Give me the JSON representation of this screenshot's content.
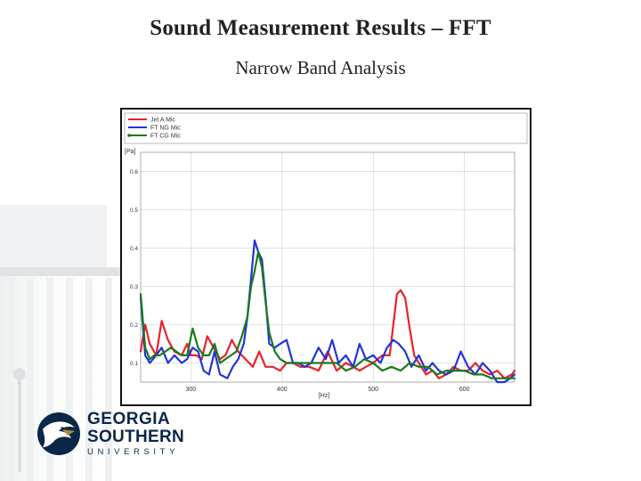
{
  "slide": {
    "title": "Sound  Measurement Results – FFT",
    "subtitle": "Narrow Band Analysis"
  },
  "logo": {
    "line1": "GEORGIA",
    "line2": "SOUTHERN",
    "line3": "UNIVERSITY",
    "icon": "eagle-head-icon"
  },
  "colors": {
    "jet": "#e8222a",
    "ng": "#2233dd",
    "cg": "#1a7a1a",
    "navy": "#0b2748",
    "gold": "#b0893e"
  },
  "chart_data": {
    "type": "line",
    "title": "",
    "xlabel": "[Hz]",
    "ylabel": "[Pa]",
    "xlim": [
      245,
      655
    ],
    "ylim": [
      0.05,
      0.65
    ],
    "xticks": [
      300,
      400,
      500,
      600
    ],
    "yticks": [
      0.1,
      0.2,
      0.3,
      0.4,
      0.5,
      0.6
    ],
    "grid": true,
    "legend": "top",
    "series": [
      {
        "name": "Jet A Mic",
        "color": "#e8222a",
        "x": [
          245,
          250,
          255,
          262,
          268,
          275,
          282,
          290,
          296,
          300,
          306,
          312,
          318,
          325,
          332,
          338,
          345,
          352,
          360,
          368,
          375,
          382,
          390,
          398,
          405,
          412,
          420,
          430,
          440,
          450,
          460,
          470,
          478,
          485,
          492,
          500,
          510,
          518,
          522,
          526,
          530,
          535,
          540,
          545,
          550,
          558,
          565,
          572,
          580,
          588,
          596,
          604,
          612,
          620,
          628,
          636,
          644,
          652,
          655
        ],
        "y": [
          0.13,
          0.2,
          0.15,
          0.12,
          0.21,
          0.16,
          0.13,
          0.12,
          0.15,
          0.12,
          0.12,
          0.11,
          0.17,
          0.14,
          0.11,
          0.12,
          0.16,
          0.13,
          0.11,
          0.09,
          0.13,
          0.09,
          0.09,
          0.08,
          0.1,
          0.1,
          0.09,
          0.09,
          0.08,
          0.13,
          0.08,
          0.1,
          0.09,
          0.08,
          0.09,
          0.1,
          0.12,
          0.12,
          0.2,
          0.28,
          0.29,
          0.27,
          0.19,
          0.12,
          0.1,
          0.07,
          0.08,
          0.06,
          0.07,
          0.09,
          0.08,
          0.08,
          0.1,
          0.08,
          0.07,
          0.08,
          0.06,
          0.07,
          0.08
        ]
      },
      {
        "name": "FT NG Mic",
        "color": "#2233dd",
        "x": [
          245,
          250,
          255,
          262,
          268,
          275,
          282,
          290,
          296,
          302,
          308,
          314,
          320,
          326,
          332,
          340,
          346,
          352,
          358,
          362,
          366,
          370,
          374,
          378,
          382,
          386,
          392,
          398,
          405,
          412,
          418,
          425,
          432,
          440,
          448,
          455,
          462,
          470,
          478,
          485,
          492,
          500,
          508,
          515,
          522,
          528,
          535,
          542,
          550,
          558,
          565,
          572,
          580,
          588,
          596,
          604,
          612,
          620,
          628,
          636,
          644,
          650,
          655
        ],
        "y": [
          0.27,
          0.12,
          0.1,
          0.12,
          0.14,
          0.1,
          0.12,
          0.1,
          0.11,
          0.14,
          0.13,
          0.08,
          0.07,
          0.13,
          0.07,
          0.06,
          0.09,
          0.11,
          0.15,
          0.22,
          0.32,
          0.42,
          0.39,
          0.37,
          0.27,
          0.15,
          0.14,
          0.15,
          0.16,
          0.1,
          0.1,
          0.09,
          0.1,
          0.14,
          0.11,
          0.16,
          0.1,
          0.12,
          0.09,
          0.15,
          0.11,
          0.12,
          0.1,
          0.14,
          0.16,
          0.15,
          0.13,
          0.09,
          0.12,
          0.08,
          0.1,
          0.08,
          0.07,
          0.08,
          0.13,
          0.09,
          0.07,
          0.1,
          0.08,
          0.05,
          0.05,
          0.06,
          0.07
        ]
      },
      {
        "name": "FT CG Mic",
        "color": "#1a7a1a",
        "x": [
          245,
          250,
          255,
          260,
          266,
          272,
          278,
          284,
          290,
          296,
          302,
          308,
          314,
          320,
          326,
          332,
          338,
          344,
          350,
          356,
          362,
          366,
          370,
          374,
          378,
          382,
          386,
          392,
          398,
          405,
          412,
          420,
          430,
          440,
          450,
          460,
          470,
          480,
          490,
          500,
          510,
          520,
          530,
          540,
          550,
          560,
          570,
          580,
          590,
          600,
          610,
          620,
          630,
          640,
          650,
          655
        ],
        "y": [
          0.28,
          0.14,
          0.11,
          0.12,
          0.12,
          0.13,
          0.14,
          0.13,
          0.12,
          0.12,
          0.19,
          0.14,
          0.12,
          0.12,
          0.15,
          0.1,
          0.11,
          0.12,
          0.13,
          0.17,
          0.22,
          0.3,
          0.34,
          0.39,
          0.35,
          0.26,
          0.18,
          0.13,
          0.11,
          0.1,
          0.1,
          0.1,
          0.1,
          0.1,
          0.1,
          0.1,
          0.08,
          0.09,
          0.11,
          0.1,
          0.08,
          0.09,
          0.08,
          0.1,
          0.09,
          0.09,
          0.07,
          0.08,
          0.08,
          0.08,
          0.07,
          0.07,
          0.06,
          0.06,
          0.06,
          0.06
        ]
      }
    ]
  }
}
